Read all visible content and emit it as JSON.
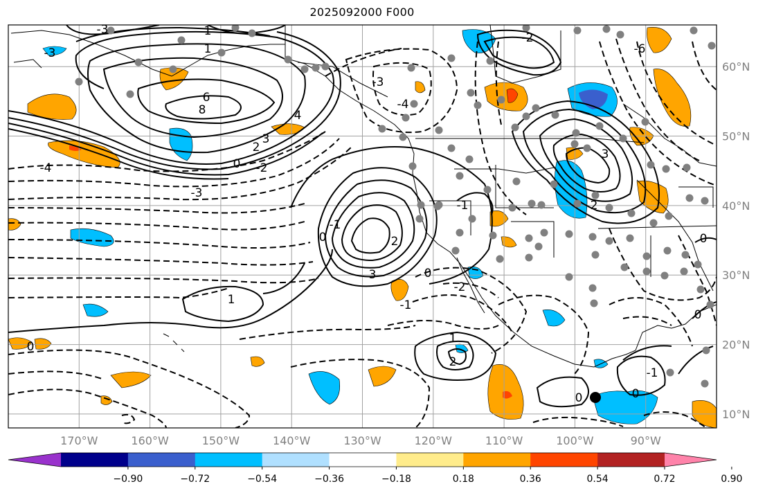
{
  "title": "2025092000 F000",
  "colors": {
    "frame": "#000000",
    "grid": "#a0a0a0",
    "station": "#808080",
    "axis_label": "#808080"
  },
  "lat_labels": [
    {
      "lat": 60,
      "text": "60°N"
    },
    {
      "lat": 50,
      "text": "50°N"
    },
    {
      "lat": 40,
      "text": "40°N"
    },
    {
      "lat": 30,
      "text": "30°N"
    },
    {
      "lat": 20,
      "text": "20°N"
    },
    {
      "lat": 10,
      "text": "10°N"
    }
  ],
  "lon_labels": [
    {
      "lon": -170,
      "text": "170°W"
    },
    {
      "lon": -160,
      "text": "160°W"
    },
    {
      "lon": -150,
      "text": "150°W"
    },
    {
      "lon": -140,
      "text": "140°W"
    },
    {
      "lon": -130,
      "text": "130°W"
    },
    {
      "lon": -120,
      "text": "120°W"
    },
    {
      "lon": -110,
      "text": "110°W"
    },
    {
      "lon": -100,
      "text": "100°W"
    },
    {
      "lon": -90,
      "text": "90°W"
    }
  ],
  "map_extent": {
    "lon_min": -180,
    "lon_max": -80,
    "lat_min": 8,
    "lat_max": 66
  },
  "colorbar": {
    "colors": [
      "#9932cc",
      "#00008b",
      "#3a5fcd",
      "#1e90ff",
      "#00bfff",
      "#b0e0ff",
      "#ffffff",
      "#ffec8b",
      "#ffa500",
      "#ff4500",
      "#b22222",
      "#ff83aa",
      "#ff83aa"
    ],
    "bins": [
      "#9932cc",
      "#00008b",
      "#3a5fcd",
      "#00bfff",
      "#b0e0ff",
      "#ffffff",
      "#ffec8b",
      "#ffa500",
      "#ff4500",
      "#b22222",
      "#ff83aa"
    ],
    "ticks": [
      {
        "value": -0.9,
        "text": "−0.90"
      },
      {
        "value": -0.72,
        "text": "−0.72"
      },
      {
        "value": -0.54,
        "text": "−0.54"
      },
      {
        "value": -0.36,
        "text": "−0.36"
      },
      {
        "value": -0.18,
        "text": "−0.18"
      },
      {
        "value": 0.18,
        "text": "0.18"
      },
      {
        "value": 0.36,
        "text": "0.36"
      },
      {
        "value": 0.54,
        "text": "0.54"
      },
      {
        "value": 0.72,
        "text": "0.72"
      },
      {
        "value": 0.9,
        "text": "0.90"
      }
    ]
  },
  "contour_labels": [
    {
      "id": "c1",
      "text": "1"
    },
    {
      "id": "c2",
      "text": "1"
    },
    {
      "id": "c3",
      "text": "6"
    },
    {
      "id": "c4",
      "text": "8"
    },
    {
      "id": "c5",
      "text": "4"
    },
    {
      "id": "c6",
      "text": "3"
    },
    {
      "id": "c7",
      "text": "2"
    },
    {
      "id": "c8",
      "text": "0"
    },
    {
      "id": "c9",
      "text": "-2"
    },
    {
      "id": "c10",
      "text": "-4"
    },
    {
      "id": "c11",
      "text": "-3"
    },
    {
      "id": "c12",
      "text": "-3"
    },
    {
      "id": "c13",
      "text": "-4"
    },
    {
      "id": "c14",
      "text": "-3"
    },
    {
      "id": "c15",
      "text": "1"
    },
    {
      "id": "c16",
      "text": "2"
    },
    {
      "id": "c17",
      "text": "3"
    },
    {
      "id": "c18",
      "text": "0"
    },
    {
      "id": "c19",
      "text": "-1"
    },
    {
      "id": "c20",
      "text": "0"
    },
    {
      "id": "c21",
      "text": "-2"
    },
    {
      "id": "c22",
      "text": "0"
    },
    {
      "id": "c23",
      "text": "1"
    },
    {
      "id": "c24",
      "text": "2"
    },
    {
      "id": "c25",
      "text": "0"
    },
    {
      "id": "c26",
      "text": "0"
    },
    {
      "id": "c27",
      "text": "-1"
    },
    {
      "id": "c28",
      "text": "-1"
    },
    {
      "id": "c29",
      "text": "3"
    },
    {
      "id": "c30",
      "text": "2"
    },
    {
      "id": "c31",
      "text": "0"
    },
    {
      "id": "c32",
      "text": "0"
    },
    {
      "id": "c33",
      "text": "-2"
    },
    {
      "id": "c34",
      "text": "-1"
    },
    {
      "id": "c35",
      "text": "-3"
    },
    {
      "id": "c36",
      "text": "-6"
    }
  ]
}
